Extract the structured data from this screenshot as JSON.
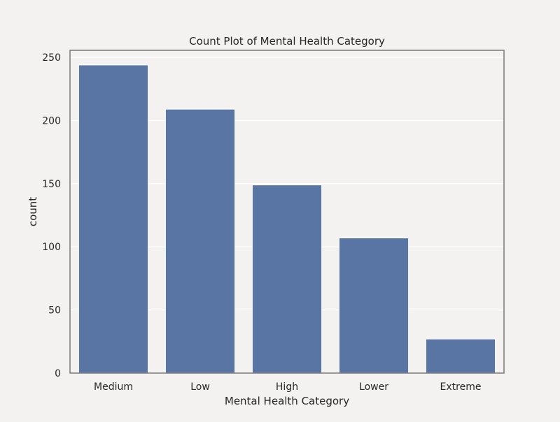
{
  "chart_data": {
    "type": "bar",
    "title": "Count Plot of Mental Health Category",
    "xlabel": "Mental Health Category",
    "ylabel": "count",
    "categories": [
      "Medium",
      "Low",
      "High",
      "Lower",
      "Extreme"
    ],
    "values": [
      244,
      209,
      149,
      107,
      27
    ],
    "ylim": [
      0,
      250
    ],
    "yticks": [
      0,
      50,
      100,
      150,
      200,
      250
    ],
    "grid": true,
    "colors": {
      "bar": "#5875a4",
      "grid": "#ffffff",
      "axes_background": "#f4f2f0",
      "spine": "#808080"
    }
  }
}
